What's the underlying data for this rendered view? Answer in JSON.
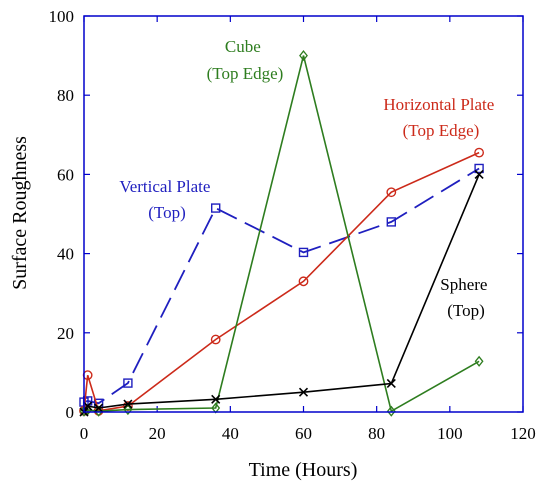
{
  "chart_data": {
    "type": "line",
    "xlabel": "Time (Hours)",
    "ylabel": "Surface Roughness",
    "xlim": [
      0,
      120
    ],
    "ylim": [
      0,
      100
    ],
    "xticks": [
      "0",
      "20",
      "40",
      "60",
      "80",
      "100",
      "120"
    ],
    "yticks": [
      "0",
      "20",
      "40",
      "60",
      "80",
      "100"
    ],
    "xtick_values": [
      0,
      20,
      40,
      60,
      80,
      100,
      120
    ],
    "ytick_values": [
      0,
      20,
      40,
      60,
      80,
      100
    ],
    "frame_color": "#0000cc",
    "series": [
      {
        "key": "vertical-plate",
        "label_lines": [
          "Vertical Plate",
          "(Top)"
        ],
        "color": "#1f1fbf",
        "dash": "dashed",
        "marker": "square",
        "x": [
          0,
          1,
          4,
          12,
          36,
          60,
          84,
          108
        ],
        "y": [
          2.5,
          2.8,
          2.2,
          7.3,
          51.5,
          40.3,
          48.0,
          61.5
        ]
      },
      {
        "key": "horizontal-plate",
        "label_lines": [
          "Horizontal Plate",
          "(Top Edge)"
        ],
        "color": "#cc2a1a",
        "dash": "solid",
        "marker": "circle",
        "x": [
          0,
          1,
          4,
          12,
          36,
          60,
          84,
          108
        ],
        "y": [
          0.3,
          9.3,
          0.3,
          1.5,
          18.3,
          33.0,
          55.5,
          65.5
        ]
      },
      {
        "key": "cube",
        "label_lines": [
          "Cube",
          "(Top Edge)"
        ],
        "color": "#2e7d1f",
        "dash": "solid",
        "marker": "diamond",
        "x": [
          0,
          1,
          4,
          12,
          36,
          60,
          84,
          108
        ],
        "y": [
          0.2,
          0.5,
          0.2,
          0.6,
          1.0,
          90.0,
          0.2,
          12.8
        ]
      },
      {
        "key": "sphere",
        "label_lines": [
          "Sphere",
          "(Top)"
        ],
        "color": "#000000",
        "dash": "solid",
        "marker": "x",
        "x": [
          0,
          1,
          4,
          12,
          36,
          60,
          84,
          108
        ],
        "y": [
          0.0,
          1.5,
          1.0,
          2.0,
          3.2,
          5.0,
          7.2,
          60.0
        ]
      }
    ]
  }
}
